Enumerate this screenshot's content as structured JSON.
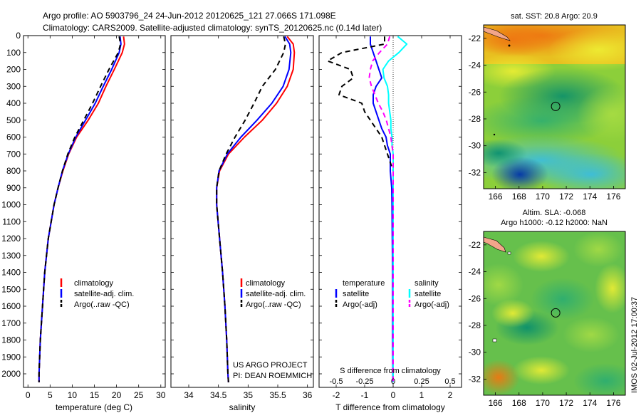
{
  "header": {
    "line1": "Argo profile: AO 5903796_24 24-Jun-2012 20120625_121 27.066S 171.098E",
    "line2": "Climatology: CARS2009. Satellite-adjusted climatology: synTS_20120625.nc (0.14d later)"
  },
  "colors": {
    "climatology": "#ff0000",
    "satellite_adj": "#0000ff",
    "argo": "#000000",
    "s_satellite": "#00ffff",
    "s_argo": "#ff00ff"
  },
  "chart_data": [
    {
      "id": "temperature",
      "type": "line",
      "xlabel": "temperature (deg C)",
      "ylabel": "",
      "xlim": [
        -1,
        31
      ],
      "ylim": [
        2080,
        0
      ],
      "xticks": [
        0,
        5,
        10,
        15,
        20,
        25,
        30
      ],
      "yticks": [
        0,
        100,
        200,
        300,
        400,
        500,
        600,
        700,
        800,
        900,
        1000,
        1100,
        1200,
        1300,
        1400,
        1500,
        1600,
        1700,
        1800,
        1900,
        2000
      ],
      "depth": [
        5,
        50,
        100,
        200,
        300,
        400,
        500,
        600,
        700,
        800,
        900,
        1000,
        1200,
        1400,
        1600,
        1800,
        2000,
        2050
      ],
      "series": [
        {
          "name": "climatology",
          "color": "#ff0000",
          "dash": "",
          "values": [
            21.6,
            21.8,
            21.3,
            19.5,
            17.6,
            15.9,
            13.6,
            11.0,
            9.2,
            7.9,
            6.8,
            5.9,
            4.6,
            3.8,
            3.3,
            2.8,
            2.5,
            2.5
          ]
        },
        {
          "name": "satellite-adj. clim.",
          "color": "#0000ff",
          "dash": "",
          "values": [
            20.8,
            21.0,
            20.6,
            18.9,
            17.0,
            15.2,
            13.0,
            10.8,
            9.1,
            7.8,
            6.8,
            5.9,
            4.6,
            3.8,
            3.3,
            2.8,
            2.5,
            2.5
          ]
        },
        {
          "name": "Argo(..raw -QC)",
          "color": "#000000",
          "dash": "7,5",
          "values": [
            20.6,
            20.9,
            20.4,
            18.3,
            16.4,
            14.6,
            12.6,
            10.6,
            9.0,
            7.8,
            6.8,
            5.9,
            4.6,
            3.8,
            3.3,
            2.8,
            2.5,
            2.5
          ]
        }
      ],
      "legend": [
        "climatology",
        "satellite-adj. clim.",
        "Argo(..raw -QC)"
      ]
    },
    {
      "id": "salinity",
      "type": "line",
      "xlabel": "salinity",
      "ylabel": "",
      "xlim": [
        33.7,
        36.1
      ],
      "ylim": [
        2080,
        0
      ],
      "xticks": [
        34,
        34.5,
        35,
        35.5,
        36
      ],
      "xticklabels": [
        "34",
        "34.5",
        "35",
        "35.5",
        "36"
      ],
      "depth": [
        5,
        50,
        100,
        200,
        300,
        400,
        500,
        600,
        700,
        800,
        900,
        1000,
        1200,
        1400,
        1600,
        1800,
        2000,
        2050
      ],
      "series": [
        {
          "name": "climatology",
          "color": "#ff0000",
          "dash": "",
          "values": [
            35.66,
            35.76,
            35.78,
            35.76,
            35.66,
            35.48,
            35.24,
            34.94,
            34.67,
            34.52,
            34.47,
            34.47,
            34.52,
            34.57,
            34.61,
            34.64,
            34.66,
            34.67
          ]
        },
        {
          "name": "satellite-adj. clim.",
          "color": "#0000ff",
          "dash": "",
          "values": [
            35.62,
            35.7,
            35.72,
            35.69,
            35.59,
            35.4,
            35.15,
            34.88,
            34.65,
            34.51,
            34.47,
            34.47,
            34.52,
            34.57,
            34.61,
            34.64,
            34.66,
            34.67
          ]
        },
        {
          "name": "Argo(..raw -QC)",
          "color": "#000000",
          "dash": "7,5",
          "values": [
            35.6,
            35.63,
            35.6,
            35.46,
            35.24,
            35.1,
            34.95,
            34.78,
            34.63,
            34.51,
            34.47,
            34.47,
            34.52,
            34.57,
            34.61,
            34.64,
            34.66,
            34.67
          ]
        }
      ],
      "legend": [
        "climatology",
        "satellite-adj. clim.",
        "Argo(..raw -QC)"
      ],
      "annotations": [
        "US ARGO PROJECT",
        "PI: DEAN ROEMMICH"
      ]
    },
    {
      "id": "difference",
      "type": "line",
      "xlabel": "T difference from climatology",
      "xlabel_top": "S difference from climatology",
      "xlim": [
        -2.6,
        2.4
      ],
      "ylim": [
        2080,
        0
      ],
      "xticks": [
        -2,
        -1,
        0,
        1,
        2
      ],
      "xticklabels_bottom": [
        "-2",
        "-1",
        "0",
        "1",
        "2"
      ],
      "s_ticks": [
        -0.5,
        -0.25,
        0,
        0.25,
        0.5
      ],
      "s_ticklabels": [
        "-0.5",
        "-0.25",
        "0",
        "0.25",
        "0.5"
      ],
      "s_scale": 0.25,
      "depth": [
        5,
        50,
        100,
        150,
        200,
        250,
        300,
        350,
        400,
        450,
        500,
        550,
        600,
        650,
        700,
        800,
        900,
        1000,
        1200,
        1400,
        1600,
        1800,
        2000,
        2050
      ],
      "series": [
        {
          "name": "temperature satellite",
          "color": "#0000ff",
          "dash": "",
          "values": [
            -0.8,
            -0.8,
            -0.7,
            -0.6,
            -0.5,
            -0.4,
            -0.6,
            -0.7,
            -0.7,
            -0.6,
            -0.5,
            -0.4,
            -0.25,
            -0.2,
            -0.1,
            -0.1,
            -0.05,
            -0.04,
            -0.03,
            -0.02,
            -0.02,
            -0.02,
            -0.01,
            -0.01
          ]
        },
        {
          "name": "temperature Argo(-adj)",
          "color": "#000000",
          "dash": "7,5",
          "values": [
            -0.3,
            -0.3,
            -1.8,
            -2.3,
            -1.5,
            -1.4,
            -1.8,
            -1.9,
            -1.1,
            -1.0,
            -0.8,
            -0.6,
            -0.4,
            -0.3,
            -0.2,
            0.0,
            0.0,
            0.0,
            0.0,
            0.0,
            0.0,
            0.0,
            0.0,
            0.0
          ]
        },
        {
          "name": "salinity satellite",
          "color": "#00ffff",
          "dash": "",
          "values": [
            0.04,
            0.12,
            0.05,
            -0.04,
            -0.09,
            -0.08,
            -0.05,
            -0.04,
            -0.04,
            -0.03,
            -0.02,
            -0.02,
            -0.01,
            -0.01,
            0.0,
            0.0,
            0.0,
            0.0,
            0.0,
            0.0,
            0.0,
            0.0,
            0.0,
            0.0
          ]
        },
        {
          "name": "salinity Argo(-adj)",
          "color": "#ff00ff",
          "dash": "7,5",
          "values": [
            -0.03,
            -0.05,
            -0.12,
            -0.18,
            -0.2,
            -0.21,
            -0.19,
            -0.16,
            -0.13,
            -0.09,
            -0.06,
            -0.04,
            -0.02,
            -0.01,
            0.0,
            0.0,
            0.0,
            0.0,
            0.0,
            0.0,
            0.0,
            0.0,
            0.0,
            0.0
          ]
        }
      ],
      "legend": {
        "temperature_title": "temperature",
        "salinity_title": "salinity",
        "t_satellite": "satellite",
        "t_argo": "Argo(-adj)",
        "s_satellite": "satellite",
        "s_argo": "Argo(-adj)"
      }
    },
    {
      "id": "sst_map",
      "type": "heatmap",
      "title": "sat. SST: 20.8 Argo: 20.9",
      "xlim": [
        165,
        177
      ],
      "ylim": [
        -33.2,
        -21
      ]
    },
    {
      "id": "sla_map",
      "type": "heatmap",
      "title_line1": "Altim. SLA: -0.068",
      "title_line2": "Argo h1000: -0.12 h2000: NaN",
      "xlim": [
        165,
        177
      ],
      "ylim": [
        -33.2,
        -21
      ]
    }
  ],
  "maps": {
    "xticks": [
      166,
      168,
      170,
      172,
      174,
      176
    ],
    "xticklabels": [
      "166",
      "168",
      "170",
      "172",
      "174",
      "176"
    ],
    "yticks": [
      -22,
      -24,
      -26,
      -28,
      -30,
      -32
    ],
    "yticklabels": [
      "-22",
      "-24",
      "-26",
      "-28",
      "-30",
      "-32"
    ],
    "marker": {
      "lon": 171.098,
      "lat": -27.066
    }
  },
  "footer": {
    "stamp": "IMOS 02-Jul-2012 17:00:37"
  }
}
